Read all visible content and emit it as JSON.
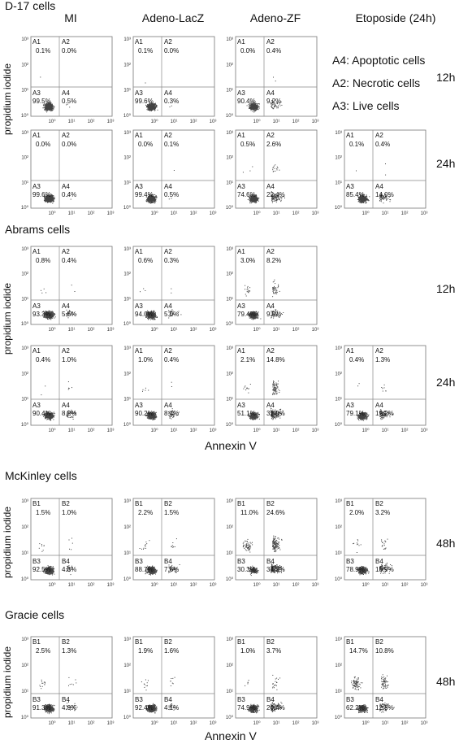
{
  "header": {
    "columns": [
      "MI",
      "Adeno-LacZ",
      "Adeno-ZF",
      "Etoposide (24h)"
    ]
  },
  "legend": {
    "a4": "A4: Apoptotic cells",
    "a2": "A2: Necrotic cells",
    "a3": "A3: Live cells"
  },
  "axis": {
    "ylabel": "propidium iodide",
    "xlabel": "Annexin V",
    "yticks": [
      "10³",
      "10²",
      "10¹",
      "10⁰"
    ],
    "xticks": [
      "10⁰",
      "10¹",
      "10²",
      "10³"
    ]
  },
  "chart_data": [
    {
      "type": "scatter",
      "title": "D-17 cells",
      "xlabel": "",
      "ylabel": "propidium iodide",
      "rows": [
        {
          "time": "12h",
          "plots": [
            {
              "col": 0,
              "labels": [
                "A1",
                "A2",
                "A3",
                "A4"
              ],
              "values": [
                "0.1%",
                "0.0%",
                "99.5%",
                "0.5%"
              ]
            },
            {
              "col": 1,
              "labels": [
                "A1",
                "A2",
                "A3",
                "A4"
              ],
              "values": [
                "0.1%",
                "0.0%",
                "99.6%",
                "0.3%"
              ]
            },
            {
              "col": 2,
              "labels": [
                "A1",
                "A2",
                "A3",
                "A4"
              ],
              "values": [
                "0.0%",
                "0.4%",
                "90.4%",
                "9.2%"
              ]
            }
          ]
        },
        {
          "time": "24h",
          "plots": [
            {
              "col": 0,
              "labels": [
                "A1",
                "A2",
                "A3",
                "A4"
              ],
              "values": [
                "0.0%",
                "0.0%",
                "99.6%",
                "0.4%"
              ]
            },
            {
              "col": 1,
              "labels": [
                "A1",
                "A2",
                "A3",
                "A4"
              ],
              "values": [
                "0.0%",
                "0.1%",
                "99.4%",
                "0.5%"
              ]
            },
            {
              "col": 2,
              "labels": [
                "A1",
                "A2",
                "A3",
                "A4"
              ],
              "values": [
                "0.5%",
                "2.6%",
                "74.6%",
                "22.4%"
              ]
            },
            {
              "col": 3,
              "labels": [
                "A1",
                "A2",
                "A3",
                "A4"
              ],
              "values": [
                "0.1%",
                "0.4%",
                "85.4%",
                "14.0%"
              ]
            }
          ]
        }
      ]
    },
    {
      "type": "scatter",
      "title": "Abrams cells",
      "xlabel": "Annexin V",
      "ylabel": "propidium iodide",
      "rows": [
        {
          "time": "12h",
          "plots": [
            {
              "col": 0,
              "labels": [
                "A1",
                "A2",
                "A3",
                "A4"
              ],
              "values": [
                "0.8%",
                "0.4%",
                "93.3%",
                "5.5%"
              ]
            },
            {
              "col": 1,
              "labels": [
                "A1",
                "A2",
                "A3",
                "A4"
              ],
              "values": [
                "0.6%",
                "0.3%",
                "94.0%",
                "5.0%"
              ]
            },
            {
              "col": 2,
              "labels": [
                "A1",
                "A2",
                "A3",
                "A4"
              ],
              "values": [
                "3.0%",
                "8.2%",
                "79.4%",
                "9.5%"
              ]
            }
          ]
        },
        {
          "time": "24h",
          "plots": [
            {
              "col": 0,
              "labels": [
                "A1",
                "A2",
                "A3",
                "A4"
              ],
              "values": [
                "0.4%",
                "1.0%",
                "90.4%",
                "8.2%"
              ]
            },
            {
              "col": 1,
              "labels": [
                "A1",
                "A2",
                "A3",
                "A4"
              ],
              "values": [
                "1.0%",
                "0.4%",
                "90.2%",
                "8.4%"
              ]
            },
            {
              "col": 2,
              "labels": [
                "A1",
                "A2",
                "A3",
                "A4"
              ],
              "values": [
                "2.1%",
                "14.8%",
                "51.1%",
                "32.0%"
              ]
            },
            {
              "col": 3,
              "labels": [
                "A1",
                "A2",
                "A3",
                "A4"
              ],
              "values": [
                "0.4%",
                "1.3%",
                "79.1%",
                "19.2%"
              ]
            }
          ]
        }
      ]
    },
    {
      "type": "scatter",
      "title": "McKinley cells",
      "xlabel": "",
      "ylabel": "propidium iodide",
      "rows": [
        {
          "time": "48h",
          "plots": [
            {
              "col": 0,
              "labels": [
                "B1",
                "B2",
                "B3",
                "B4"
              ],
              "values": [
                "1.5%",
                "1.0%",
                "92.5%",
                "4.8%"
              ]
            },
            {
              "col": 1,
              "labels": [
                "B1",
                "B2",
                "B3",
                "B4"
              ],
              "values": [
                "2.2%",
                "1.5%",
                "88.7%",
                "7.6%"
              ]
            },
            {
              "col": 2,
              "labels": [
                "B1",
                "B2",
                "B3",
                "B4"
              ],
              "values": [
                "11.0%",
                "24.6%",
                "30.3%",
                "34.2%"
              ]
            },
            {
              "col": 3,
              "labels": [
                "B1",
                "B2",
                "B3",
                "B4"
              ],
              "values": [
                "2.0%",
                "3.2%",
                "78.9%",
                "15.9%"
              ]
            }
          ]
        }
      ]
    },
    {
      "type": "scatter",
      "title": "Gracie cells",
      "xlabel": "Annexin V",
      "ylabel": "propidium iodide",
      "rows": [
        {
          "time": "48h",
          "plots": [
            {
              "col": 0,
              "labels": [
                "B1",
                "B2",
                "B3",
                "B4"
              ],
              "values": [
                "2.5%",
                "1.3%",
                "91.3%",
                "4.9%"
              ]
            },
            {
              "col": 1,
              "labels": [
                "B1",
                "B2",
                "B3",
                "B4"
              ],
              "values": [
                "1.9%",
                "1.6%",
                "92.4%",
                "4.1%"
              ]
            },
            {
              "col": 2,
              "labels": [
                "B1",
                "B2",
                "B3",
                "B4"
              ],
              "values": [
                "1.0%",
                "3.7%",
                "74.9%",
                "20.4%"
              ]
            },
            {
              "col": 3,
              "labels": [
                "B1",
                "B2",
                "B3",
                "B4"
              ],
              "values": [
                "14.7%",
                "10.8%",
                "62.2%",
                "12.3%"
              ]
            }
          ]
        }
      ]
    }
  ]
}
